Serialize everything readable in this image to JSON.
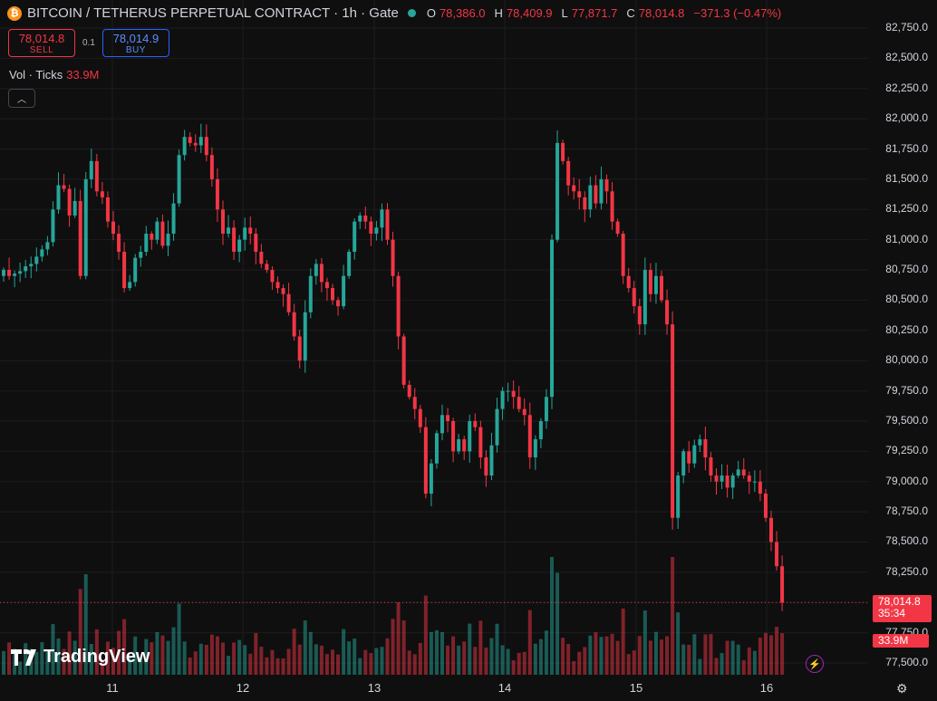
{
  "header": {
    "title": "BITCOIN / TETHERUS PERPETUAL CONTRACT · 1h · Gate",
    "open_label": "O",
    "open": "78,386.0",
    "high_label": "H",
    "high": "78,409.9",
    "low_label": "L",
    "low": "77,871.7",
    "close_label": "C",
    "close": "78,014.8",
    "change": "−371.3 (−0.47%)"
  },
  "trade": {
    "sell_price": "78,014.8",
    "sell_label": "SELL",
    "spread": "0.1",
    "buy_price": "78,014.9",
    "buy_label": "BUY"
  },
  "volume_legend": {
    "label": "Vol · Ticks",
    "value": "33.9M"
  },
  "price_axis": [
    "82,750.0",
    "82,500.0",
    "82,250.0",
    "82,000.0",
    "81,750.0",
    "81,500.0",
    "81,250.0",
    "81,000.0",
    "80,750.0",
    "80,500.0",
    "80,250.0",
    "80,000.0",
    "79,750.0",
    "79,500.0",
    "79,250.0",
    "79,000.0",
    "78,750.0",
    "78,500.0",
    "78,250.0",
    "77,750.0",
    "77,500.0"
  ],
  "time_axis": [
    "11",
    "12",
    "13",
    "14",
    "15",
    "16"
  ],
  "last_price": {
    "price": "78,014.8",
    "countdown": "35:34"
  },
  "last_volume": "33.9M",
  "logo_text": "TradingView",
  "colors": {
    "up": "#26a69a",
    "down": "#f23645",
    "background": "#0f0f0f",
    "grid": "#1f2023"
  },
  "chart_data": {
    "type": "candlestick",
    "price_range": [
      77450,
      82850
    ],
    "closes": [
      80750,
      80700,
      80720,
      80740,
      80780,
      80800,
      80860,
      80920,
      80980,
      81250,
      81450,
      81420,
      81200,
      81320,
      80700,
      81500,
      81650,
      81400,
      81350,
      81150,
      81050,
      80900,
      80600,
      80650,
      80850,
      80900,
      81050,
      81000,
      81150,
      80950,
      81050,
      81300,
      81700,
      81850,
      81800,
      81780,
      81850,
      81700,
      81500,
      81250,
      81050,
      81100,
      80900,
      81000,
      81100,
      81050,
      80900,
      80800,
      80750,
      80650,
      80600,
      80550,
      80400,
      80200,
      80000,
      80400,
      80700,
      80800,
      80650,
      80600,
      80500,
      80450,
      80700,
      80900,
      81150,
      81200,
      81150,
      81050,
      81100,
      81250,
      81000,
      80700,
      80200,
      79800,
      79700,
      79600,
      79450,
      78900,
      79150,
      79400,
      79550,
      79500,
      79250,
      79350,
      79250,
      79500,
      79450,
      79200,
      79050,
      79300,
      79600,
      79750,
      79750,
      79700,
      79600,
      79550,
      79200,
      79350,
      79500,
      79700,
      81000,
      81800,
      81650,
      81450,
      81400,
      81350,
      81250,
      81450,
      81300,
      81500,
      81400,
      81150,
      81050,
      80700,
      80600,
      80450,
      80300,
      80750,
      80550,
      80700,
      80500,
      80300,
      78700,
      79050,
      79250,
      79150,
      79300,
      79350,
      79200,
      79050,
      79000,
      79050,
      78950,
      79050,
      79100,
      79050,
      79000,
      79000,
      78900,
      78700,
      78500,
      78300,
      78000
    ],
    "volume_max_label": "33.9M"
  }
}
